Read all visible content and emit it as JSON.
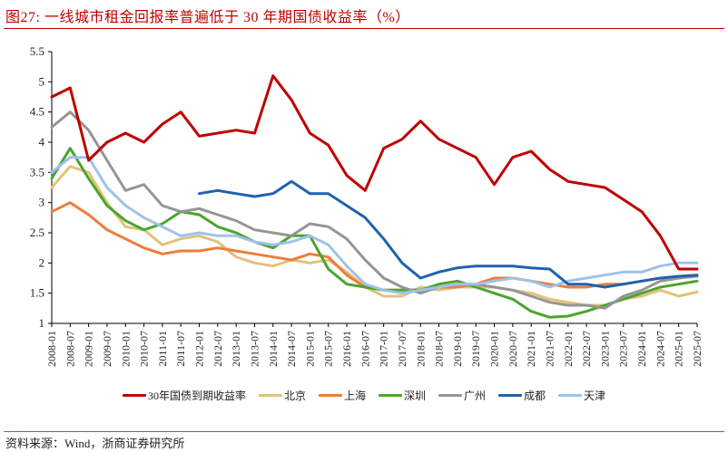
{
  "header": {
    "title": "图27:  一线城市租金回报率普遍低于 30 年期国债收益率（%）"
  },
  "footer": {
    "source": "资料来源：Wind，浙商证券研究所"
  },
  "legend": {
    "items": [
      {
        "label": "30年国债到期收益率",
        "color": "#c00000"
      },
      {
        "label": "北京",
        "color": "#e2c27a"
      },
      {
        "label": "上海",
        "color": "#ee7d3b"
      },
      {
        "label": "深圳",
        "color": "#4aa52e"
      },
      {
        "label": "广州",
        "color": "#959595"
      },
      {
        "label": "成都",
        "color": "#1f62ad"
      },
      {
        "label": "天津",
        "color": "#9ec2ea"
      }
    ]
  },
  "chart_data": {
    "type": "line",
    "title": "一线城市租金回报率普遍低于 30 年期国债收益率（%）",
    "xlabel": "",
    "ylabel": "%",
    "ylim": [
      1,
      5.5
    ],
    "yticks": [
      "1",
      "1.5",
      "2",
      "2.5",
      "3",
      "3.5",
      "4",
      "4.5",
      "5",
      "5.5"
    ],
    "grid": false,
    "legend_position": "bottom",
    "x": [
      "2008-01",
      "2008-07",
      "2009-01",
      "2009-07",
      "2010-01",
      "2010-07",
      "2011-01",
      "2011-07",
      "2012-01",
      "2012-07",
      "2013-01",
      "2013-07",
      "2014-01",
      "2014-07",
      "2015-01",
      "2015-07",
      "2016-01",
      "2016-07",
      "2017-01",
      "2017-07",
      "2018-01",
      "2018-07",
      "2019-01",
      "2019-07",
      "2020-01",
      "2020-07",
      "2021-01",
      "2021-07",
      "2022-01",
      "2022-07",
      "2023-01",
      "2023-07",
      "2024-01",
      "2024-07",
      "2025-01",
      "2025-07"
    ],
    "series": [
      {
        "name": "30年国债到期收益率",
        "color": "#c00000",
        "values": [
          4.75,
          4.9,
          3.7,
          4.0,
          4.15,
          4.0,
          4.3,
          4.5,
          4.1,
          4.15,
          4.2,
          4.15,
          5.1,
          4.7,
          4.15,
          3.95,
          3.45,
          3.2,
          3.9,
          4.05,
          4.35,
          4.05,
          3.9,
          3.75,
          3.3,
          3.75,
          3.85,
          3.55,
          3.35,
          3.3,
          3.25,
          3.05,
          2.85,
          2.45,
          1.9,
          1.9
        ]
      },
      {
        "name": "北京",
        "color": "#e2c27a",
        "values": [
          3.25,
          3.6,
          3.5,
          3.0,
          2.6,
          2.55,
          2.3,
          2.4,
          2.45,
          2.35,
          2.1,
          2.0,
          1.95,
          2.05,
          2.0,
          2.05,
          1.85,
          1.6,
          1.45,
          1.45,
          1.6,
          1.55,
          1.6,
          1.6,
          1.6,
          1.55,
          1.5,
          1.4,
          1.35,
          1.3,
          1.3,
          1.4,
          1.45,
          1.55,
          1.45,
          1.52
        ]
      },
      {
        "name": "上海",
        "color": "#ee7d3b",
        "values": [
          2.85,
          3.0,
          2.8,
          2.55,
          2.4,
          2.25,
          2.15,
          2.2,
          2.2,
          2.25,
          2.2,
          2.15,
          2.1,
          2.05,
          2.15,
          2.1,
          1.8,
          1.6,
          1.55,
          1.55,
          1.55,
          1.6,
          1.6,
          1.65,
          1.75,
          1.75,
          1.7,
          1.65,
          1.6,
          1.6,
          1.65,
          1.65,
          1.7,
          1.75,
          1.75,
          1.8
        ]
      },
      {
        "name": "深圳",
        "color": "#4aa52e",
        "values": [
          3.4,
          3.9,
          3.4,
          2.95,
          2.7,
          2.55,
          2.65,
          2.85,
          2.8,
          2.6,
          2.5,
          2.35,
          2.25,
          2.45,
          2.45,
          1.9,
          1.65,
          1.6,
          1.55,
          1.55,
          1.55,
          1.65,
          1.7,
          1.6,
          1.5,
          1.4,
          1.2,
          1.1,
          1.12,
          1.2,
          1.3,
          1.4,
          1.5,
          1.6,
          1.65,
          1.7
        ]
      },
      {
        "name": "广州",
        "color": "#959595",
        "values": [
          4.25,
          4.5,
          4.2,
          3.7,
          3.2,
          3.3,
          2.95,
          2.85,
          2.9,
          2.8,
          2.7,
          2.55,
          2.5,
          2.45,
          2.65,
          2.6,
          2.4,
          2.05,
          1.75,
          1.6,
          1.5,
          1.6,
          1.65,
          1.65,
          1.6,
          1.55,
          1.45,
          1.35,
          1.3,
          1.3,
          1.25,
          1.45,
          1.55,
          1.7,
          1.75,
          1.78
        ]
      },
      {
        "name": "成都",
        "color": "#1f62ad",
        "values": [
          null,
          null,
          null,
          null,
          null,
          null,
          null,
          null,
          3.15,
          3.2,
          3.15,
          3.1,
          3.15,
          3.35,
          3.15,
          3.15,
          2.95,
          2.75,
          2.4,
          2.0,
          1.75,
          1.85,
          1.92,
          1.95,
          1.95,
          1.95,
          1.92,
          1.9,
          1.65,
          1.65,
          1.6,
          1.65,
          1.7,
          1.75,
          1.78,
          1.8
        ]
      },
      {
        "name": "天津",
        "color": "#9ec2ea",
        "values": [
          3.5,
          3.75,
          3.75,
          3.25,
          2.95,
          2.75,
          2.6,
          2.45,
          2.5,
          2.45,
          2.45,
          2.35,
          2.3,
          2.35,
          2.45,
          2.3,
          1.95,
          1.65,
          1.55,
          1.5,
          1.55,
          1.6,
          1.65,
          1.65,
          1.7,
          1.75,
          1.7,
          1.6,
          1.7,
          1.75,
          1.8,
          1.85,
          1.85,
          1.95,
          2.0,
          2.0
        ]
      }
    ]
  }
}
